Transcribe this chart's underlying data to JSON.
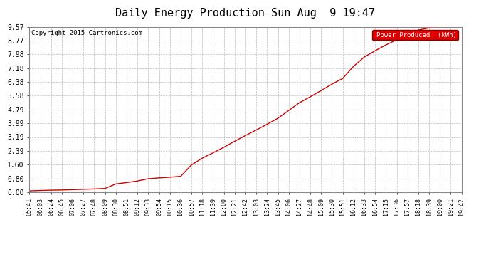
{
  "title": "Daily Energy Production Sun Aug  9 19:47",
  "copyright": "Copyright 2015 Cartronics.com",
  "legend_label": "Power Produced  (kWh)",
  "legend_bg": "#dd0000",
  "legend_text_color": "#ffffff",
  "line_color": "#cc0000",
  "background_color": "#ffffff",
  "plot_bg_color": "#ffffff",
  "grid_color": "#bbbbbb",
  "ytick_labels": [
    "0.00",
    "0.80",
    "1.60",
    "2.39",
    "3.19",
    "3.99",
    "4.79",
    "5.58",
    "6.38",
    "7.18",
    "7.98",
    "8.77",
    "9.57"
  ],
  "ytick_values": [
    0.0,
    0.8,
    1.6,
    2.39,
    3.19,
    3.99,
    4.79,
    5.58,
    6.38,
    7.18,
    7.98,
    8.77,
    9.57
  ],
  "ymax": 9.57,
  "ymin": 0.0,
  "xtick_labels": [
    "05:41",
    "06:03",
    "06:24",
    "06:45",
    "07:06",
    "07:27",
    "07:48",
    "08:09",
    "08:30",
    "08:51",
    "09:12",
    "09:33",
    "09:54",
    "10:15",
    "10:36",
    "10:57",
    "11:18",
    "11:39",
    "12:00",
    "12:21",
    "12:42",
    "13:03",
    "13:24",
    "13:45",
    "14:06",
    "14:27",
    "14:48",
    "15:09",
    "15:30",
    "15:51",
    "16:12",
    "16:33",
    "16:54",
    "17:15",
    "17:36",
    "17:57",
    "18:18",
    "18:39",
    "19:00",
    "19:21",
    "19:42"
  ],
  "x_indices": [
    0,
    1,
    2,
    3,
    4,
    5,
    6,
    7,
    8,
    9,
    10,
    11,
    12,
    13,
    14,
    15,
    16,
    17,
    18,
    19,
    20,
    21,
    22,
    23,
    24,
    25,
    26,
    27,
    28,
    29,
    30,
    31,
    32,
    33,
    34,
    35,
    36,
    37,
    38,
    39,
    40
  ],
  "curve_y": [
    0.08,
    0.1,
    0.12,
    0.13,
    0.15,
    0.17,
    0.19,
    0.22,
    0.48,
    0.56,
    0.65,
    0.78,
    0.83,
    0.87,
    0.92,
    1.58,
    1.97,
    2.28,
    2.6,
    2.95,
    3.28,
    3.6,
    3.93,
    4.28,
    4.73,
    5.18,
    5.52,
    5.88,
    6.25,
    6.58,
    7.28,
    7.82,
    8.18,
    8.52,
    8.82,
    9.1,
    9.38,
    9.5,
    9.54,
    9.56,
    9.57
  ]
}
